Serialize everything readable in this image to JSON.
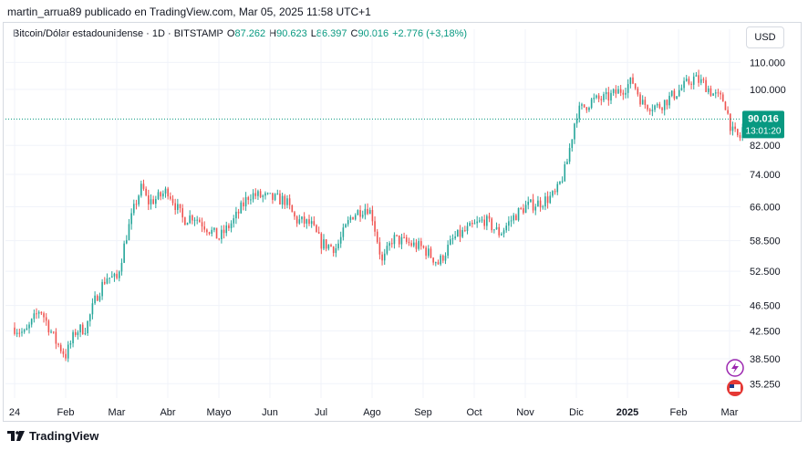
{
  "attribution": "martin_arrua89 publicado en TradingView.com, Mar 05, 2025 11:58 UTC+1",
  "legend": {
    "symbol": "Bitcoin/Dólar estadounidense · 1D · BITSTAMP",
    "open_label": "O",
    "open": "87.262",
    "high_label": "H",
    "high": "90.623",
    "low_label": "L",
    "low": "86.397",
    "close_label": "C",
    "close": "90.016",
    "change": "+2.776 (+3,18%)"
  },
  "currency_button": "USD",
  "price_tag": {
    "price": "90.016",
    "countdown": "13:01:20"
  },
  "footer": {
    "brand": "TradingView"
  },
  "colors": {
    "up": "#26a69a",
    "down": "#ef5350",
    "current_line": "#089981",
    "grid": "#f0f3fa"
  },
  "chart_data": {
    "type": "candlestick",
    "title": "Bitcoin/Dólar estadounidense · 1D · BITSTAMP",
    "xlabel": "",
    "ylabel": "",
    "y_scale": "log",
    "ylim": [
      33500,
      116000
    ],
    "y_ticks": [
      {
        "value": 110000,
        "label": "110.000"
      },
      {
        "value": 100000,
        "label": "100.000"
      },
      {
        "value": 82000,
        "label": "82.000"
      },
      {
        "value": 74000,
        "label": "74.000"
      },
      {
        "value": 66000,
        "label": "66.000"
      },
      {
        "value": 58500,
        "label": "58.500"
      },
      {
        "value": 52500,
        "label": "52.500"
      },
      {
        "value": 46500,
        "label": "46.500"
      },
      {
        "value": 42500,
        "label": "42.500"
      },
      {
        "value": 38500,
        "label": "38.500"
      },
      {
        "value": 35250,
        "label": "35.250"
      }
    ],
    "x_ticks": [
      "24",
      "Feb",
      "Mar",
      "Abr",
      "Mayo",
      "Jun",
      "Jul",
      "Ago",
      "Sep",
      "Oct",
      "Nov",
      "Dic",
      "2025",
      "Feb",
      "Mar"
    ],
    "x_bold": [
      "2025"
    ],
    "current_price": 90016,
    "approx_close_path": [
      [
        0,
        43000
      ],
      [
        0.2,
        42000
      ],
      [
        0.5,
        46000
      ],
      [
        0.8,
        41000
      ],
      [
        1.0,
        39000
      ],
      [
        1.2,
        42500
      ],
      [
        1.4,
        43000
      ],
      [
        1.6,
        48000
      ],
      [
        1.8,
        51500
      ],
      [
        2.0,
        51000
      ],
      [
        2.2,
        60000
      ],
      [
        2.4,
        68000
      ],
      [
        2.5,
        71000
      ],
      [
        2.6,
        67000
      ],
      [
        2.8,
        68000
      ],
      [
        3.0,
        70000
      ],
      [
        3.3,
        63000
      ],
      [
        3.5,
        64000
      ],
      [
        3.8,
        61000
      ],
      [
        4.0,
        59000
      ],
      [
        4.3,
        63000
      ],
      [
        4.6,
        69000
      ],
      [
        5.0,
        68000
      ],
      [
        5.3,
        67500
      ],
      [
        5.5,
        63000
      ],
      [
        5.8,
        62000
      ],
      [
        6.0,
        58000
      ],
      [
        6.3,
        57000
      ],
      [
        6.6,
        64000
      ],
      [
        6.9,
        66000
      ],
      [
        7.0,
        64000
      ],
      [
        7.2,
        54000
      ],
      [
        7.4,
        59000
      ],
      [
        7.7,
        58000
      ],
      [
        8.0,
        57000
      ],
      [
        8.3,
        54000
      ],
      [
        8.6,
        59000
      ],
      [
        8.9,
        61000
      ],
      [
        9.2,
        63000
      ],
      [
        9.5,
        60000
      ],
      [
        9.8,
        64000
      ],
      [
        10.0,
        66000
      ],
      [
        10.3,
        67000
      ],
      [
        10.6,
        69000
      ],
      [
        10.8,
        76000
      ],
      [
        11.0,
        92000
      ],
      [
        11.3,
        96000
      ],
      [
        11.6,
        97000
      ],
      [
        11.9,
        100000
      ],
      [
        12.1,
        103000
      ],
      [
        12.3,
        95000
      ],
      [
        12.6,
        94000
      ],
      [
        12.9,
        98000
      ],
      [
        13.1,
        101000
      ],
      [
        13.3,
        104000
      ],
      [
        13.5,
        102000
      ],
      [
        13.7,
        98000
      ],
      [
        13.9,
        96000
      ],
      [
        14.05,
        86000
      ],
      [
        14.2,
        84000
      ],
      [
        14.3,
        90016
      ]
    ]
  }
}
